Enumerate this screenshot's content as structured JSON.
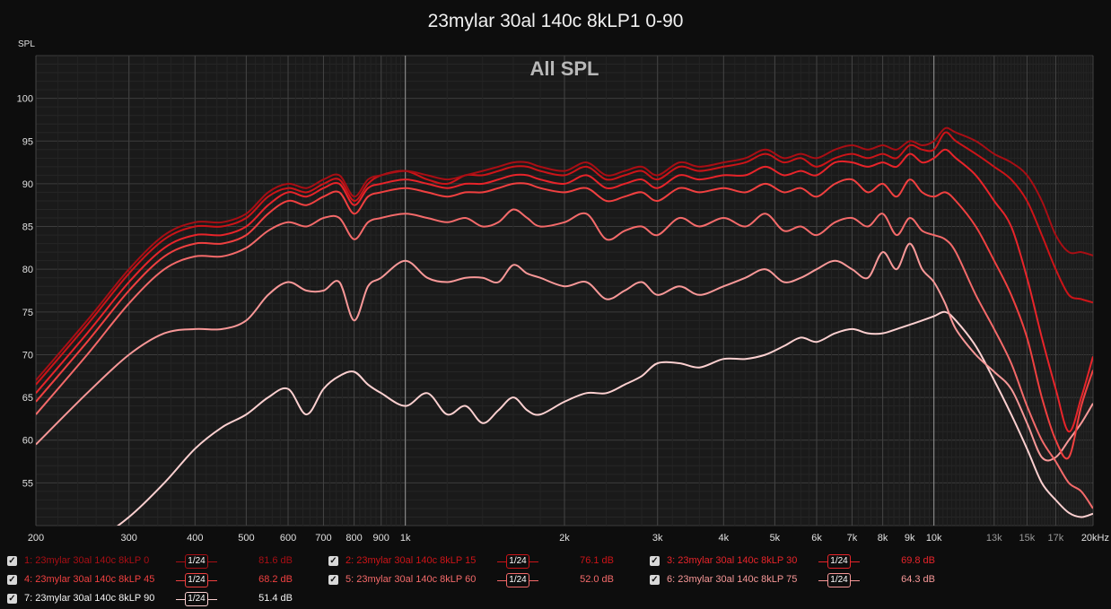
{
  "window_title": "23mylar 30al 140c 8kLP1 0-90",
  "chart_data": {
    "type": "line",
    "title": "All SPL",
    "ylabel": "SPL",
    "xlabel": "",
    "xscale": "log",
    "xlim": [
      200,
      20000
    ],
    "ylim": [
      50,
      105
    ],
    "x_ticks": [
      {
        "v": 200,
        "label": "200"
      },
      {
        "v": 300,
        "label": "300"
      },
      {
        "v": 400,
        "label": "400"
      },
      {
        "v": 500,
        "label": "500"
      },
      {
        "v": 600,
        "label": "600"
      },
      {
        "v": 700,
        "label": "700"
      },
      {
        "v": 800,
        "label": "800"
      },
      {
        "v": 900,
        "label": "900"
      },
      {
        "v": 1000,
        "label": "1k"
      },
      {
        "v": 2000,
        "label": "2k"
      },
      {
        "v": 3000,
        "label": "3k"
      },
      {
        "v": 4000,
        "label": "4k"
      },
      {
        "v": 5000,
        "label": "5k"
      },
      {
        "v": 6000,
        "label": "6k"
      },
      {
        "v": 7000,
        "label": "7k"
      },
      {
        "v": 8000,
        "label": "8k"
      },
      {
        "v": 9000,
        "label": "9k"
      },
      {
        "v": 10000,
        "label": "10k"
      },
      {
        "v": 13000,
        "label": "13k"
      },
      {
        "v": 15000,
        "label": "15k"
      },
      {
        "v": 17000,
        "label": "17k"
      },
      {
        "v": 20000,
        "label": "20kHz"
      }
    ],
    "y_ticks": [
      55,
      60,
      65,
      70,
      75,
      80,
      85,
      90,
      95,
      100
    ],
    "x": [
      200,
      250,
      300,
      350,
      400,
      450,
      500,
      550,
      600,
      650,
      700,
      750,
      800,
      850,
      900,
      1000,
      1100,
      1200,
      1300,
      1400,
      1500,
      1600,
      1700,
      1800,
      2000,
      2200,
      2400,
      2600,
      2800,
      3000,
      3300,
      3600,
      4000,
      4400,
      4800,
      5200,
      5600,
      6000,
      6500,
      7000,
      7500,
      8000,
      8500,
      9000,
      9500,
      10000,
      10500,
      11000,
      12000,
      13000,
      14000,
      15000,
      16000,
      17000,
      18000,
      19000,
      20000
    ],
    "series": [
      {
        "name": "1: 23mylar 30al 140c 8kLP 0",
        "color": "#a80e14",
        "values": [
          67.0,
          74.0,
          80.0,
          84.0,
          85.5,
          85.5,
          86.5,
          89.0,
          90.0,
          89.5,
          90.5,
          91.0,
          88.5,
          90.5,
          91.0,
          91.5,
          91.0,
          90.5,
          91.0,
          91.5,
          92.0,
          92.5,
          92.5,
          92.0,
          91.5,
          92.5,
          91.0,
          91.5,
          92.0,
          91.0,
          92.5,
          92.0,
          92.5,
          93.0,
          94.0,
          93.0,
          93.5,
          93.0,
          94.0,
          94.5,
          94.0,
          94.5,
          94.0,
          95.0,
          94.5,
          95.0,
          96.5,
          96.0,
          95.0,
          93.5,
          92.5,
          91.0,
          88.0,
          84.0,
          82.0,
          82.0,
          81.6
        ]
      },
      {
        "name": "2: 23mylar 30al 140c 8kLP 15",
        "color": "#cc1418",
        "values": [
          66.5,
          73.5,
          79.5,
          83.5,
          85.0,
          85.0,
          86.0,
          88.5,
          89.5,
          89.0,
          90.0,
          90.5,
          88.0,
          90.0,
          91.0,
          91.5,
          90.5,
          90.0,
          91.0,
          91.0,
          91.5,
          92.0,
          92.0,
          91.5,
          91.0,
          92.0,
          90.5,
          91.0,
          91.5,
          90.5,
          92.0,
          91.5,
          92.0,
          92.5,
          93.5,
          92.5,
          93.0,
          92.0,
          93.0,
          93.5,
          93.0,
          93.5,
          93.0,
          94.5,
          94.0,
          94.0,
          96.0,
          95.0,
          93.5,
          92.0,
          90.5,
          88.0,
          84.0,
          80.0,
          77.0,
          76.5,
          76.1
        ]
      },
      {
        "name": "3: 23mylar 30al 140c 8kLP 30",
        "color": "#e8242a",
        "values": [
          65.5,
          72.5,
          78.5,
          82.5,
          84.0,
          84.0,
          85.0,
          87.5,
          89.0,
          88.5,
          89.5,
          90.0,
          87.5,
          89.5,
          90.0,
          90.5,
          90.0,
          89.5,
          90.0,
          90.0,
          90.5,
          91.0,
          91.0,
          90.5,
          90.0,
          91.0,
          89.5,
          90.0,
          90.5,
          89.5,
          91.0,
          90.5,
          91.0,
          91.0,
          92.0,
          91.0,
          91.5,
          91.0,
          92.5,
          92.5,
          92.0,
          92.5,
          92.0,
          93.5,
          92.5,
          93.0,
          94.0,
          93.0,
          91.0,
          88.0,
          85.0,
          79.0,
          72.0,
          66.0,
          61.0,
          65.0,
          69.8
        ]
      },
      {
        "name": "4: 23mylar 30al 140c 8kLP 45",
        "color": "#f04040",
        "values": [
          64.5,
          71.5,
          77.5,
          81.5,
          83.0,
          83.0,
          84.0,
          86.5,
          88.0,
          87.5,
          88.5,
          89.0,
          86.5,
          88.5,
          89.0,
          89.5,
          89.0,
          88.5,
          89.0,
          89.0,
          89.5,
          90.0,
          90.0,
          89.5,
          89.0,
          89.5,
          88.0,
          88.5,
          89.0,
          88.0,
          89.5,
          89.0,
          89.5,
          89.0,
          90.0,
          89.0,
          89.5,
          88.5,
          90.0,
          90.5,
          89.0,
          90.0,
          88.5,
          90.5,
          89.0,
          88.5,
          89.0,
          88.0,
          85.0,
          81.0,
          77.0,
          72.0,
          65.0,
          60.0,
          58.0,
          64.0,
          68.2
        ]
      },
      {
        "name": "5: 23mylar 30al 140c 8kLP 60",
        "color": "#f46a6a",
        "values": [
          63.0,
          70.0,
          76.0,
          80.0,
          81.5,
          81.5,
          82.5,
          84.5,
          85.5,
          85.0,
          86.0,
          86.0,
          83.5,
          85.5,
          86.0,
          86.5,
          86.0,
          85.5,
          86.0,
          85.0,
          85.5,
          87.0,
          86.0,
          85.0,
          85.5,
          86.5,
          83.5,
          84.5,
          85.0,
          84.0,
          86.0,
          85.0,
          86.0,
          85.0,
          86.5,
          84.5,
          85.0,
          84.0,
          85.5,
          86.0,
          85.0,
          86.5,
          84.0,
          86.0,
          84.5,
          84.0,
          83.5,
          82.0,
          77.0,
          73.0,
          69.0,
          64.0,
          60.0,
          57.5,
          55.0,
          54.0,
          52.0
        ]
      },
      {
        "name": "6: 23mylar 30al 140c 8kLP 75",
        "color": "#f89898",
        "values": [
          59.5,
          65.5,
          70.0,
          72.5,
          73.0,
          73.0,
          74.0,
          77.0,
          78.5,
          77.5,
          77.5,
          78.5,
          74.0,
          78.0,
          79.0,
          81.0,
          79.0,
          78.5,
          79.0,
          79.0,
          78.5,
          80.5,
          79.5,
          79.0,
          78.0,
          78.5,
          76.5,
          77.5,
          78.5,
          77.0,
          78.0,
          77.0,
          78.0,
          79.0,
          80.0,
          78.5,
          79.0,
          80.0,
          81.0,
          80.0,
          79.0,
          82.0,
          80.0,
          83.0,
          80.0,
          78.5,
          76.0,
          73.0,
          70.0,
          68.0,
          66.0,
          62.0,
          58.0,
          58.0,
          60.0,
          62.0,
          64.3
        ]
      },
      {
        "name": "7: 23mylar 30al 140c 8kLP 90",
        "color": "#fcd0d0",
        "values": [
          44.0,
          47.5,
          51.0,
          55.0,
          59.0,
          61.5,
          63.0,
          65.0,
          66.0,
          63.0,
          66.0,
          67.5,
          68.0,
          66.5,
          65.5,
          64.0,
          65.5,
          63.0,
          64.0,
          62.0,
          63.5,
          65.0,
          63.5,
          63.0,
          64.5,
          65.5,
          65.5,
          66.5,
          67.5,
          69.0,
          69.0,
          68.5,
          69.5,
          69.5,
          70.0,
          71.0,
          72.0,
          71.5,
          72.5,
          73.0,
          72.5,
          72.5,
          73.0,
          73.5,
          74.0,
          74.5,
          75.0,
          74.0,
          71.0,
          67.0,
          63.0,
          59.0,
          55.0,
          53.0,
          51.5,
          51.0,
          51.4
        ]
      }
    ]
  },
  "legend": [
    {
      "name": "1: 23mylar 30al 140c 8kLP 0",
      "smoothing": "1/24",
      "value": "81.6 dB",
      "color": "#a80e14",
      "checked": true
    },
    {
      "name": "2: 23mylar 30al 140c 8kLP 15",
      "smoothing": "1/24",
      "value": "76.1 dB",
      "color": "#cc1418",
      "checked": true
    },
    {
      "name": "3: 23mylar 30al 140c 8kLP 30",
      "smoothing": "1/24",
      "value": "69.8 dB",
      "color": "#e8242a",
      "checked": true
    },
    {
      "name": "4: 23mylar 30al 140c 8kLP 45",
      "smoothing": "1/24",
      "value": "68.2 dB",
      "color": "#f04040",
      "checked": true
    },
    {
      "name": "5: 23mylar 30al 140c 8kLP 60",
      "smoothing": "1/24",
      "value": "52.0 dB",
      "color": "#f46a6a",
      "checked": true
    },
    {
      "name": "6: 23mylar 30al 140c 8kLP 75",
      "smoothing": "1/24",
      "value": "64.3 dB",
      "color": "#f89898",
      "checked": true
    },
    {
      "name": "7: 23mylar 30al 140c 8kLP 90",
      "smoothing": "1/24",
      "value": "51.4 dB",
      "color": "#fcd0d0",
      "checked": true
    }
  ]
}
